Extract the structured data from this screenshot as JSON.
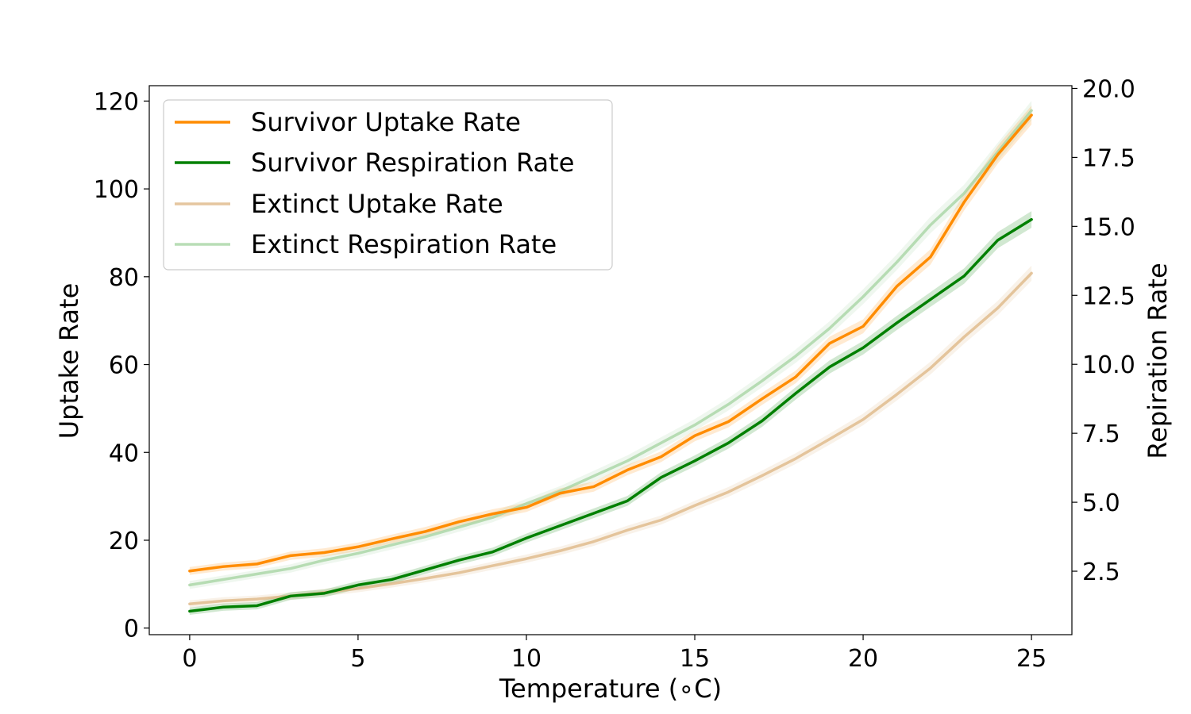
{
  "chart_data": {
    "type": "line",
    "xlabel": "Temperature (∘C)",
    "ylabel_left": "Uptake Rate",
    "ylabel_right": "Repiration Rate",
    "x": [
      0,
      1,
      2,
      3,
      4,
      5,
      6,
      7,
      8,
      9,
      10,
      11,
      12,
      13,
      14,
      15,
      16,
      17,
      18,
      19,
      20,
      21,
      22,
      23,
      24,
      25
    ],
    "xlim": [
      -1.2,
      26.2
    ],
    "xticks": [
      0,
      5,
      10,
      15,
      20,
      25
    ],
    "ylim_left": [
      -1.5,
      123.5
    ],
    "yticks_left": [
      0,
      20,
      40,
      60,
      80,
      100,
      120
    ],
    "ylim_right": [
      0.2,
      20.1
    ],
    "yticks_right": [
      2.5,
      5.0,
      7.5,
      10.0,
      12.5,
      15.0,
      17.5,
      20.0
    ],
    "ytick_right_labels": [
      "2.5",
      "5.0",
      "7.5",
      "10.0",
      "12.5",
      "15.0",
      "17.5",
      "20.0"
    ],
    "legend_position": "top-left",
    "series": [
      {
        "name": "Survivor Uptake Rate",
        "axis": "left",
        "color": "#ff8c00",
        "opacity": 1.0,
        "values": [
          13.0,
          14.0,
          14.6,
          16.5,
          17.2,
          18.5,
          20.3,
          22.0,
          24.2,
          26.0,
          27.5,
          30.7,
          32.2,
          36.0,
          39.0,
          43.8,
          47.0,
          52.2,
          57.2,
          64.8,
          68.7,
          77.8,
          84.5,
          97.0,
          107.8,
          116.8
        ]
      },
      {
        "name": "Survivor Respiration Rate",
        "axis": "right",
        "color": "#008000",
        "opacity": 1.0,
        "values": [
          1.05,
          1.2,
          1.25,
          1.6,
          1.7,
          2.0,
          2.2,
          2.55,
          2.9,
          3.2,
          3.7,
          4.15,
          4.6,
          5.05,
          5.9,
          6.5,
          7.15,
          7.95,
          8.95,
          9.9,
          10.6,
          11.5,
          12.35,
          13.2,
          14.5,
          15.25
        ]
      },
      {
        "name": "Extinct Uptake Rate",
        "axis": "left",
        "color": "#deb887",
        "opacity": 0.8,
        "values": [
          5.5,
          6.2,
          6.6,
          7.3,
          8.1,
          9.0,
          10.1,
          11.3,
          12.6,
          14.2,
          15.8,
          17.6,
          19.7,
          22.3,
          24.6,
          27.9,
          31.0,
          34.7,
          38.6,
          43.0,
          47.5,
          53.2,
          59.2,
          66.3,
          72.9,
          80.8
        ]
      },
      {
        "name": "Extinct Respiration Rate",
        "axis": "right",
        "color": "#a8d4a4",
        "opacity": 0.8,
        "values": [
          2.0,
          2.2,
          2.4,
          2.6,
          2.9,
          3.15,
          3.45,
          3.75,
          4.1,
          4.45,
          4.95,
          5.4,
          5.95,
          6.5,
          7.15,
          7.8,
          8.55,
          9.4,
          10.3,
          11.3,
          12.45,
          13.7,
          15.05,
          16.2,
          17.7,
          19.2
        ]
      }
    ]
  }
}
